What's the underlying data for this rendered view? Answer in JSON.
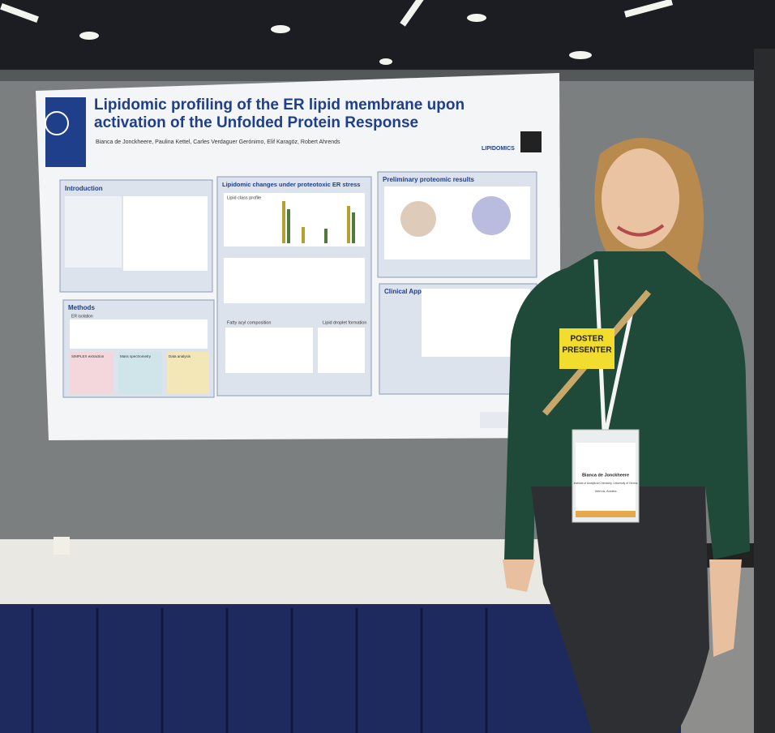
{
  "poster": {
    "title_lines": [
      "Lipidomic profiling of the ER lipid membrane upon",
      "activation of the Unfolded Protein Response"
    ],
    "authors": "Bianca de Jonckheere, Paulina Kettel, Carles Verdaguer Gerónimo, Elif Karagöz, Robert Ahrends",
    "logo": "LIPIDOMICS",
    "sections": [
      "Introduction",
      "Lipidomic changes under proteotoxic ER stress",
      "Preliminary proteomic results",
      "Methods",
      "Clinical Applications"
    ],
    "sub_labels": [
      "Lipid class profile",
      "Fatty acyl composition",
      "Lipid droplet formation",
      "ER isolation",
      "SIMPLEX extraction",
      "Mass spectrometry",
      "Data analysis"
    ]
  },
  "ribbon": [
    "POSTER",
    "PRESENTER"
  ],
  "name_badge": {
    "name": "Bianca de Jonckheere",
    "affiliation": "Institute of Analytical Chemistry, University of Vienna",
    "location": "Vienna, Austria"
  }
}
